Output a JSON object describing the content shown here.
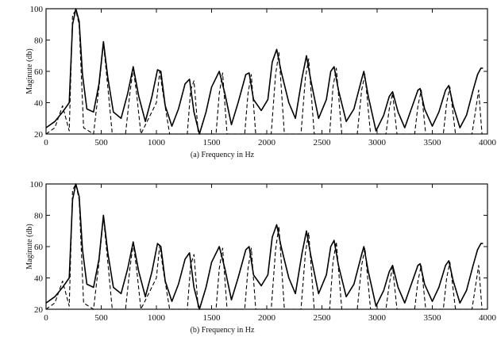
{
  "chart_data": [
    {
      "type": "line",
      "panel": "(a)",
      "xlabel": "(a)  Frequency in Hz",
      "ylabel": "Maginute (db)",
      "xlim": [
        0,
        4000
      ],
      "ylim": [
        20,
        100
      ],
      "xticks": [
        0,
        500,
        1000,
        1500,
        2000,
        2500,
        3000,
        3500,
        4000
      ],
      "yticks": [
        20,
        40,
        60,
        80,
        100
      ],
      "grid": false,
      "series": [
        {
          "style": "solid",
          "x": [
            0,
            80,
            150,
            210,
            240,
            270,
            300,
            330,
            370,
            430,
            480,
            520,
            560,
            610,
            680,
            740,
            790,
            840,
            900,
            960,
            1010,
            1040,
            1080,
            1140,
            1200,
            1260,
            1300,
            1340,
            1390,
            1450,
            1500,
            1570,
            1620,
            1680,
            1740,
            1810,
            1840,
            1880,
            1950,
            2010,
            2050,
            2090,
            2130,
            2200,
            2260,
            2320,
            2360,
            2400,
            2470,
            2540,
            2580,
            2610,
            2650,
            2720,
            2790,
            2860,
            2880,
            2920,
            2990,
            3060,
            3110,
            3140,
            3190,
            3250,
            3310,
            3370,
            3390,
            3430,
            3500,
            3560,
            3620,
            3650,
            3690,
            3750,
            3810,
            3870,
            3910,
            3940,
            3960
          ],
          "y": [
            24,
            28,
            34,
            40,
            90,
            100,
            92,
            58,
            36,
            34,
            52,
            79,
            56,
            34,
            30,
            46,
            63,
            44,
            28,
            44,
            61,
            60,
            38,
            25,
            36,
            52,
            55,
            34,
            20,
            34,
            50,
            60,
            46,
            26,
            40,
            58,
            59,
            42,
            35,
            42,
            66,
            74,
            60,
            40,
            30,
            56,
            70,
            54,
            30,
            42,
            60,
            63,
            48,
            28,
            36,
            55,
            60,
            44,
            22,
            32,
            44,
            47,
            34,
            24,
            36,
            48,
            49,
            36,
            25,
            34,
            48,
            51,
            38,
            24,
            32,
            48,
            58,
            62,
            62
          ]
        },
        {
          "style": "dashed",
          "x": [
            0,
            80,
            150,
            210,
            240,
            270,
            300,
            340,
            430,
            480,
            520,
            560,
            600,
            720,
            760,
            790,
            820,
            860,
            1000,
            1030,
            1060,
            1120,
            1280,
            1310,
            1340,
            1380,
            1540,
            1570,
            1600,
            1640,
            1800,
            1830,
            1860,
            1900,
            2040,
            2080,
            2110,
            2160,
            2310,
            2350,
            2380,
            2430,
            2570,
            2600,
            2630,
            2680,
            2820,
            2860,
            2890,
            2940,
            3080,
            3110,
            3140,
            3180,
            3340,
            3370,
            3400,
            3440,
            3600,
            3630,
            3660,
            3710,
            3860,
            3890,
            3920,
            3950
          ],
          "y": [
            20,
            24,
            38,
            22,
            96,
            99,
            90,
            24,
            20,
            50,
            78,
            50,
            20,
            20,
            46,
            62,
            46,
            20,
            40,
            60,
            46,
            20,
            20,
            48,
            54,
            20,
            20,
            46,
            59,
            20,
            20,
            46,
            58,
            20,
            20,
            58,
            72,
            20,
            20,
            56,
            68,
            20,
            20,
            50,
            62,
            20,
            20,
            48,
            58,
            20,
            20,
            36,
            46,
            20,
            20,
            38,
            48,
            20,
            20,
            40,
            50,
            20,
            20,
            34,
            48,
            20
          ]
        }
      ]
    },
    {
      "type": "line",
      "panel": "(b)",
      "xlabel": "(b)  Frequency in Hz",
      "ylabel": "Maginute (db)",
      "xlim": [
        0,
        4000
      ],
      "ylim": [
        20,
        100
      ],
      "xticks": [
        0,
        500,
        1000,
        1500,
        2000,
        2500,
        3000,
        3500,
        4000
      ],
      "yticks": [
        20,
        40,
        60,
        80,
        100
      ],
      "grid": false,
      "series": [
        {
          "style": "solid",
          "x": [
            0,
            80,
            150,
            210,
            240,
            270,
            300,
            330,
            370,
            430,
            480,
            520,
            560,
            610,
            680,
            740,
            790,
            840,
            900,
            960,
            1010,
            1040,
            1080,
            1140,
            1200,
            1260,
            1300,
            1340,
            1390,
            1450,
            1500,
            1570,
            1620,
            1680,
            1740,
            1810,
            1840,
            1880,
            1950,
            2010,
            2050,
            2090,
            2130,
            2200,
            2260,
            2320,
            2360,
            2400,
            2470,
            2540,
            2580,
            2610,
            2650,
            2720,
            2790,
            2860,
            2880,
            2920,
            2990,
            3060,
            3110,
            3140,
            3190,
            3250,
            3310,
            3370,
            3390,
            3430,
            3500,
            3560,
            3620,
            3650,
            3690,
            3750,
            3810,
            3870,
            3910,
            3940,
            3960
          ],
          "y": [
            24,
            28,
            34,
            40,
            90,
            100,
            92,
            58,
            36,
            34,
            52,
            80,
            56,
            34,
            30,
            46,
            63,
            44,
            28,
            44,
            62,
            60,
            38,
            25,
            36,
            52,
            56,
            34,
            20,
            34,
            50,
            60,
            46,
            26,
            40,
            58,
            60,
            42,
            35,
            42,
            66,
            74,
            60,
            40,
            30,
            56,
            70,
            54,
            30,
            42,
            60,
            64,
            48,
            28,
            36,
            55,
            60,
            44,
            22,
            32,
            44,
            48,
            34,
            24,
            36,
            48,
            49,
            36,
            25,
            34,
            48,
            51,
            38,
            24,
            32,
            48,
            58,
            62,
            62
          ]
        },
        {
          "style": "dashed",
          "x": [
            0,
            80,
            150,
            210,
            240,
            270,
            300,
            340,
            430,
            480,
            520,
            560,
            600,
            720,
            760,
            790,
            820,
            860,
            1000,
            1030,
            1060,
            1120,
            1280,
            1310,
            1340,
            1380,
            1540,
            1570,
            1600,
            1640,
            1800,
            1830,
            1860,
            1900,
            2040,
            2080,
            2110,
            2160,
            2310,
            2350,
            2380,
            2430,
            2570,
            2600,
            2630,
            2680,
            2820,
            2860,
            2890,
            2940,
            3080,
            3110,
            3140,
            3180,
            3340,
            3370,
            3400,
            3440,
            3600,
            3630,
            3660,
            3710,
            3860,
            3890,
            3920,
            3950
          ],
          "y": [
            20,
            24,
            38,
            22,
            96,
            100,
            90,
            24,
            20,
            50,
            79,
            50,
            20,
            20,
            46,
            62,
            46,
            20,
            40,
            61,
            46,
            20,
            20,
            48,
            55,
            20,
            20,
            46,
            59,
            20,
            20,
            46,
            59,
            20,
            20,
            58,
            73,
            20,
            20,
            56,
            69,
            20,
            20,
            50,
            63,
            20,
            20,
            48,
            59,
            20,
            20,
            36,
            47,
            20,
            20,
            38,
            48,
            20,
            20,
            40,
            50,
            20,
            20,
            34,
            48,
            20
          ]
        }
      ]
    }
  ]
}
